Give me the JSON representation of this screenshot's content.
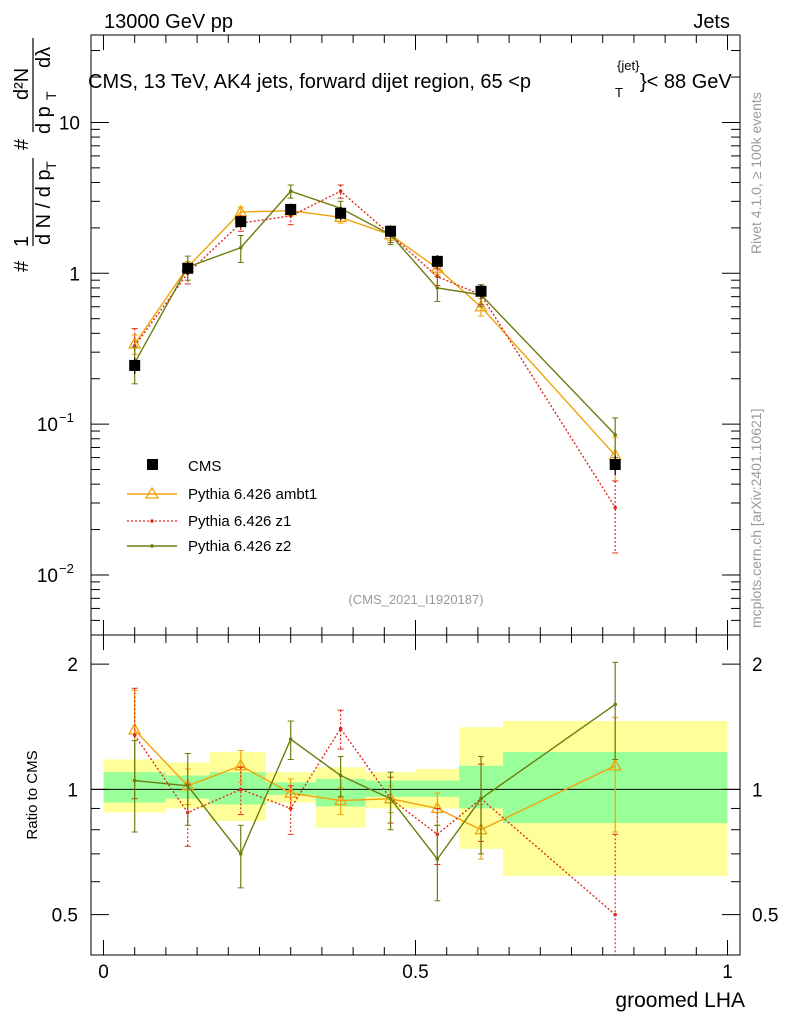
{
  "header": {
    "left": "13000 GeV pp",
    "right": "Jets"
  },
  "side_labels": {
    "rivet": "Rivet 4.1.0, ≥ 100k events",
    "mcplots": "mcplots.cern.ch [arXiv:2401.10621]"
  },
  "chart_data": {
    "type": "line",
    "title": "CMS, 13 TeV, AK4 jets, forward dijet region, 65 <p",
    "title_sup": "{jet}",
    "title_sub": "T",
    "title_tail": "}< 88 GeV",
    "analysis_id": "(CMS_2021_I1920187)",
    "xlabel": "groomed LHA",
    "ylabel": "1 / (dN/dpT) d²N / (dpT dλ)",
    "ratio_ylabel": "Ratio to CMS",
    "xlim": [
      -0.02,
      1.02
    ],
    "ylim": [
      0.004,
      38
    ],
    "ratio_ylim": [
      0.4,
      2.35
    ],
    "x_ticks": [
      {
        "v": 0,
        "label": "0"
      },
      {
        "v": 0.5,
        "label": "0.5"
      },
      {
        "v": 1,
        "label": "1"
      }
    ],
    "ratio_ticks": [
      {
        "v": 0.5,
        "label": "0.5"
      },
      {
        "v": 1,
        "label": "1"
      },
      {
        "v": 2,
        "label": "2"
      }
    ],
    "bins": [
      {
        "lo": 0.0,
        "hi": 0.1
      },
      {
        "lo": 0.1,
        "hi": 0.17
      },
      {
        "lo": 0.17,
        "hi": 0.26
      },
      {
        "lo": 0.26,
        "hi": 0.34
      },
      {
        "lo": 0.34,
        "hi": 0.42
      },
      {
        "lo": 0.42,
        "hi": 0.5
      },
      {
        "lo": 0.5,
        "hi": 0.57
      },
      {
        "lo": 0.57,
        "hi": 0.64
      },
      {
        "lo": 0.64,
        "hi": 1.0
      }
    ],
    "x": [
      0.05,
      0.135,
      0.22,
      0.3,
      0.38,
      0.46,
      0.535,
      0.605,
      0.82
    ],
    "data": {
      "name": "CMS",
      "values": [
        0.245,
        1.08,
        2.2,
        2.65,
        2.5,
        1.9,
        1.2,
        0.76,
        0.054
      ],
      "errors": [
        0.03,
        0.1,
        0.2,
        0.25,
        0.25,
        0.18,
        0.12,
        0.08,
        0.008
      ]
    },
    "ratio_bands": {
      "stat": [
        [
          0.93,
          1.1
        ],
        [
          0.95,
          1.08
        ],
        [
          0.92,
          1.1
        ],
        [
          0.97,
          1.04
        ],
        [
          0.91,
          1.06
        ],
        [
          0.96,
          1.05
        ],
        [
          0.96,
          1.05
        ],
        [
          0.9,
          1.14
        ],
        [
          0.83,
          1.23
        ]
      ],
      "total": [
        [
          0.88,
          1.18
        ],
        [
          0.9,
          1.16
        ],
        [
          0.84,
          1.23
        ],
        [
          0.93,
          1.1
        ],
        [
          0.81,
          1.13
        ],
        [
          0.9,
          1.1
        ],
        [
          0.9,
          1.12
        ],
        [
          0.72,
          1.41
        ],
        [
          0.62,
          1.46
        ]
      ]
    },
    "series": [
      {
        "name": "Pythia 6.426 ambt1",
        "color": "#f0a30a",
        "marker": "triangle",
        "dash": "",
        "values": [
          0.34,
          1.1,
          2.55,
          2.6,
          2.35,
          1.8,
          1.08,
          0.6,
          0.062
        ],
        "errors": [
          0.05,
          0.1,
          0.2,
          0.2,
          0.2,
          0.15,
          0.1,
          0.08,
          0.02
        ],
        "ratio": [
          1.39,
          1.02,
          1.14,
          0.98,
          0.94,
          0.95,
          0.9,
          0.8,
          1.14
        ],
        "ratio_err": [
          0.34,
          0.1,
          0.1,
          0.08,
          0.07,
          0.07,
          0.08,
          0.12,
          0.35
        ]
      },
      {
        "name": "Pythia 6.426 z1",
        "color": "#dd2c1f",
        "marker": "dot",
        "dash": "2,2",
        "values": [
          0.33,
          1.0,
          2.15,
          2.4,
          3.5,
          1.8,
          0.95,
          0.72,
          0.028
        ],
        "errors": [
          0.1,
          0.15,
          0.25,
          0.3,
          0.35,
          0.2,
          0.12,
          0.1,
          0.014
        ],
        "ratio": [
          1.35,
          0.88,
          1.0,
          0.9,
          1.4,
          0.95,
          0.78,
          0.95,
          0.5
        ],
        "ratio_err": [
          0.4,
          0.15,
          0.13,
          0.12,
          0.15,
          0.12,
          0.12,
          0.2,
          0.28
        ]
      },
      {
        "name": "Pythia 6.426 z2",
        "color": "#6b7d0e",
        "marker": "dot",
        "dash": "",
        "values": [
          0.255,
          1.1,
          1.48,
          3.5,
          2.7,
          1.8,
          0.8,
          0.72,
          0.085
        ],
        "errors": [
          0.07,
          0.2,
          0.3,
          0.35,
          0.3,
          0.25,
          0.15,
          0.12,
          0.025
        ],
        "ratio": [
          1.05,
          1.02,
          0.7,
          1.32,
          1.08,
          0.95,
          0.68,
          0.95,
          1.6
        ],
        "ratio_err": [
          0.26,
          0.2,
          0.12,
          0.14,
          0.12,
          0.15,
          0.14,
          0.25,
          0.42
        ]
      }
    ]
  }
}
